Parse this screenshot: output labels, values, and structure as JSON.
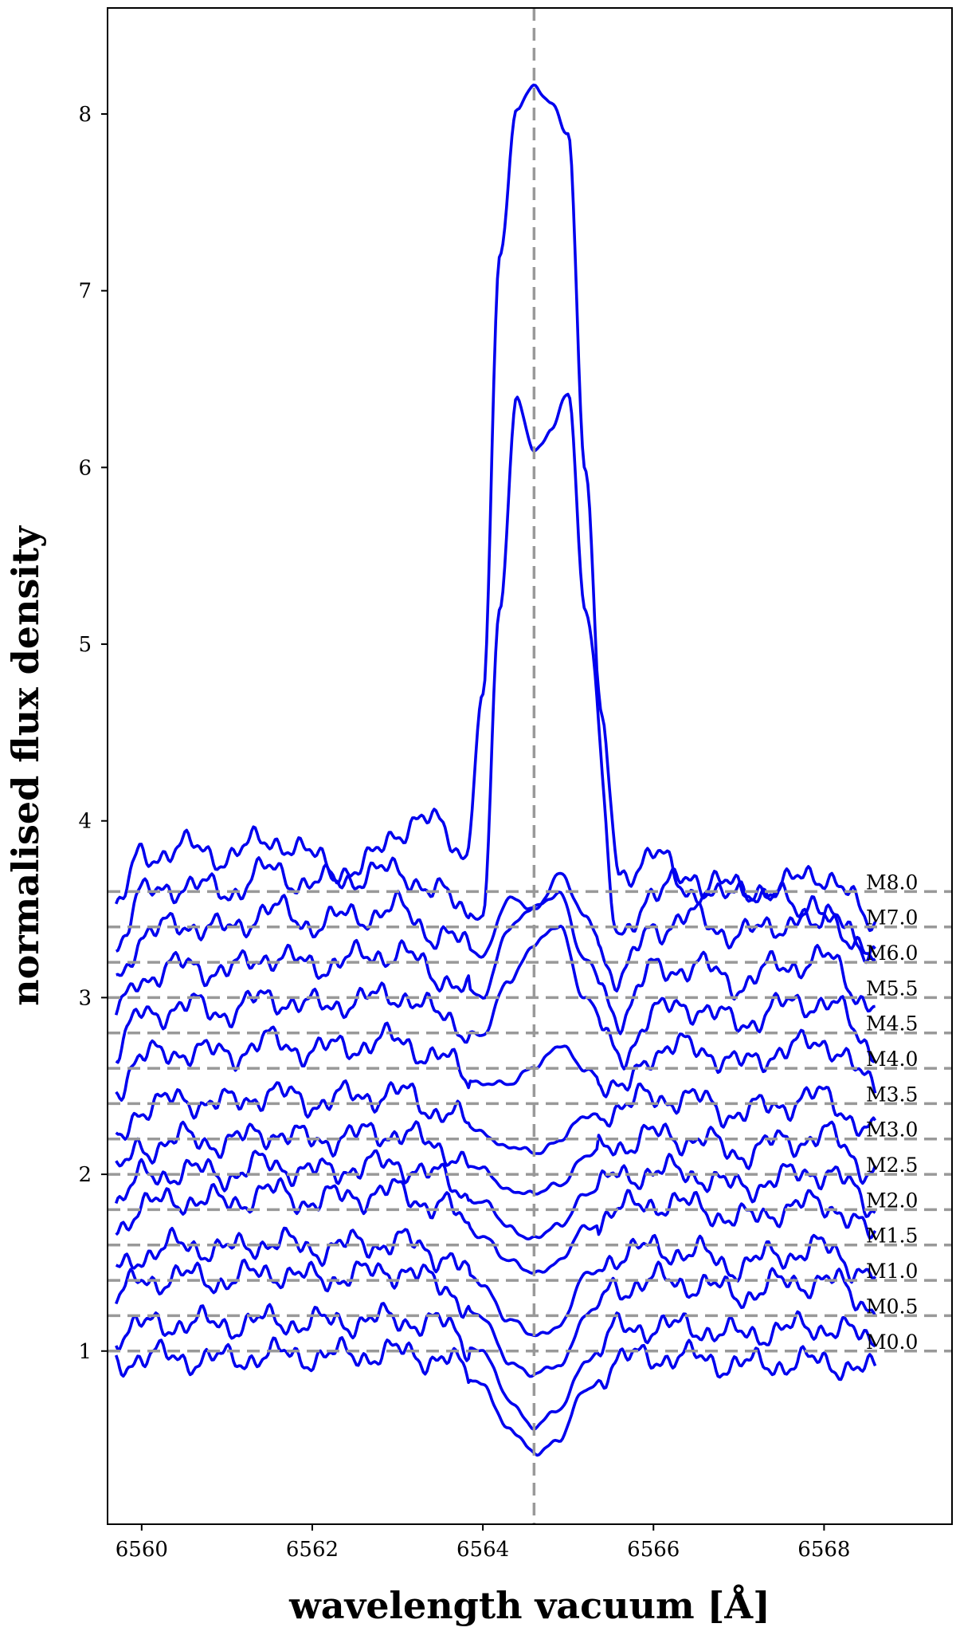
{
  "chart_data": {
    "type": "line",
    "xlabel": "wavelength vacuum [Å]",
    "ylabel": "normalised flux density",
    "xlim": [
      6559.6,
      6569.5
    ],
    "ylim": [
      0.02,
      8.6
    ],
    "xticks": [
      6560,
      6562,
      6564,
      6566,
      6568
    ],
    "yticks": [
      1,
      2,
      3,
      4,
      5,
      6,
      7,
      8
    ],
    "grid": false,
    "reference_line": {
      "x": 6564.6,
      "style": "dashed",
      "color": "#999999"
    },
    "colors": {
      "series": "#0000ee",
      "reference": "#999999"
    },
    "series": [
      {
        "name": "M0.0",
        "offset": 1.0,
        "x": [
          6559.7,
          6560.0,
          6560.5,
          6561.0,
          6561.5,
          6562.0,
          6562.5,
          6563.0,
          6563.5,
          6564.0,
          6564.3,
          6564.6,
          6564.9,
          6565.2,
          6565.6,
          6566.0,
          6566.5,
          6567.0,
          6567.5,
          6568.0,
          6568.6
        ],
        "y": [
          0.93,
          0.97,
          0.96,
          0.95,
          0.98,
          0.97,
          0.98,
          0.99,
          0.96,
          0.82,
          0.55,
          0.43,
          0.5,
          0.78,
          0.95,
          0.97,
          0.96,
          0.92,
          0.93,
          0.94,
          0.88
        ]
      },
      {
        "name": "M0.5",
        "offset": 1.2,
        "x": [
          6559.7,
          6560.0,
          6560.5,
          6561.0,
          6561.5,
          6562.0,
          6562.5,
          6563.0,
          6563.5,
          6564.0,
          6564.3,
          6564.6,
          6564.9,
          6565.2,
          6565.6,
          6566.0,
          6566.5,
          6567.0,
          6567.5,
          6568.0,
          6568.6
        ],
        "y": [
          1.1,
          1.14,
          1.16,
          1.15,
          1.17,
          1.16,
          1.17,
          1.18,
          1.15,
          1.0,
          0.72,
          0.58,
          0.66,
          0.95,
          1.12,
          1.14,
          1.13,
          1.09,
          1.12,
          1.14,
          1.06
        ]
      },
      {
        "name": "M1.0",
        "offset": 1.4,
        "x": [
          6559.7,
          6560.0,
          6560.5,
          6561.0,
          6561.5,
          6562.0,
          6562.5,
          6563.0,
          6563.5,
          6564.0,
          6564.3,
          6564.6,
          6564.9,
          6565.2,
          6565.6,
          6566.0,
          6566.5,
          6567.0,
          6567.5,
          6568.0,
          6568.6
        ],
        "y": [
          1.3,
          1.4,
          1.42,
          1.4,
          1.45,
          1.41,
          1.43,
          1.46,
          1.38,
          1.18,
          0.95,
          0.86,
          0.92,
          1.2,
          1.36,
          1.4,
          1.38,
          1.32,
          1.38,
          1.4,
          1.26
        ]
      },
      {
        "name": "M1.5",
        "offset": 1.6,
        "x": [
          6559.7,
          6560.0,
          6560.5,
          6561.0,
          6561.5,
          6562.0,
          6562.5,
          6563.0,
          6563.5,
          6564.0,
          6564.3,
          6564.6,
          6564.9,
          6565.2,
          6565.6,
          6566.0,
          6566.5,
          6567.0,
          6567.5,
          6568.0,
          6568.6
        ],
        "y": [
          1.45,
          1.55,
          1.6,
          1.57,
          1.62,
          1.58,
          1.6,
          1.62,
          1.55,
          1.38,
          1.18,
          1.08,
          1.15,
          1.42,
          1.55,
          1.58,
          1.55,
          1.48,
          1.55,
          1.58,
          1.42
        ]
      },
      {
        "name": "M2.0",
        "offset": 1.8,
        "x": [
          6559.7,
          6560.0,
          6560.5,
          6561.0,
          6561.5,
          6562.0,
          6562.5,
          6563.0,
          6563.5,
          6564.0,
          6564.3,
          6564.6,
          6564.9,
          6565.2,
          6565.6,
          6566.0,
          6566.5,
          6567.0,
          6567.5,
          6568.0,
          6568.6
        ],
        "y": [
          1.7,
          1.82,
          1.86,
          1.84,
          1.9,
          1.85,
          1.88,
          1.9,
          1.82,
          1.66,
          1.5,
          1.45,
          1.5,
          1.7,
          1.8,
          1.84,
          1.82,
          1.74,
          1.8,
          1.84,
          1.65
        ]
      },
      {
        "name": "M2.5",
        "offset": 2.0,
        "x": [
          6559.7,
          6560.0,
          6560.5,
          6561.0,
          6561.5,
          6562.0,
          6562.5,
          6563.0,
          6563.5,
          6564.0,
          6564.3,
          6564.6,
          6564.9,
          6565.2,
          6565.6,
          6566.0,
          6566.5,
          6567.0,
          6567.5,
          6568.0,
          6568.6
        ],
        "y": [
          1.85,
          1.98,
          2.02,
          2.0,
          2.06,
          2.01,
          2.04,
          2.06,
          1.98,
          1.84,
          1.7,
          1.64,
          1.7,
          1.9,
          1.98,
          2.02,
          2.0,
          1.92,
          1.98,
          2.02,
          1.82
        ]
      },
      {
        "name": "M3.0",
        "offset": 2.2,
        "x": [
          6559.7,
          6560.0,
          6560.5,
          6561.0,
          6561.5,
          6562.0,
          6562.5,
          6563.0,
          6563.5,
          6564.0,
          6564.3,
          6564.6,
          6564.9,
          6565.2,
          6565.6,
          6566.0,
          6566.5,
          6567.0,
          6567.5,
          6568.0,
          6568.6
        ],
        "y": [
          2.0,
          2.15,
          2.2,
          2.18,
          2.24,
          2.19,
          2.22,
          2.24,
          2.15,
          2.02,
          1.92,
          1.88,
          1.95,
          2.1,
          2.17,
          2.22,
          2.2,
          2.12,
          2.18,
          2.22,
          2.02
        ]
      },
      {
        "name": "M3.5",
        "offset": 2.4,
        "x": [
          6559.7,
          6560.0,
          6560.5,
          6561.0,
          6561.5,
          6562.0,
          6562.5,
          6563.0,
          6563.5,
          6564.0,
          6564.3,
          6564.6,
          6564.9,
          6565.2,
          6565.6,
          6566.0,
          6566.5,
          6567.0,
          6567.5,
          6568.0,
          6568.6
        ],
        "y": [
          2.2,
          2.38,
          2.42,
          2.4,
          2.46,
          2.41,
          2.44,
          2.46,
          2.36,
          2.24,
          2.15,
          2.12,
          2.2,
          2.32,
          2.38,
          2.44,
          2.42,
          2.34,
          2.4,
          2.44,
          2.22
        ]
      },
      {
        "name": "M4.0",
        "offset": 2.6,
        "x": [
          6559.7,
          6560.0,
          6560.5,
          6561.0,
          6561.5,
          6562.0,
          6562.5,
          6563.0,
          6563.5,
          6564.0,
          6564.3,
          6564.6,
          6564.9,
          6565.2,
          6565.6,
          6566.0,
          6566.5,
          6567.0,
          6567.5,
          6568.0,
          6568.6
        ],
        "y": [
          2.5,
          2.66,
          2.7,
          2.68,
          2.75,
          2.7,
          2.73,
          2.76,
          2.65,
          2.52,
          2.5,
          2.62,
          2.72,
          2.6,
          2.45,
          2.7,
          2.72,
          2.62,
          2.7,
          2.75,
          2.5
        ]
      },
      {
        "name": "M4.5",
        "offset": 2.8,
        "x": [
          6559.7,
          6560.0,
          6560.5,
          6561.0,
          6561.5,
          6562.0,
          6562.5,
          6563.0,
          6563.5,
          6564.0,
          6564.3,
          6564.6,
          6564.9,
          6565.2,
          6565.6,
          6566.0,
          6566.5,
          6567.0,
          6567.5,
          6568.0,
          6568.6
        ],
        "y": [
          2.7,
          2.9,
          2.95,
          2.92,
          3.0,
          2.95,
          2.98,
          3.02,
          2.9,
          2.78,
          3.1,
          3.3,
          3.4,
          3.0,
          2.65,
          2.92,
          2.95,
          2.85,
          2.95,
          2.98,
          2.72
        ]
      },
      {
        "name": "M5.5",
        "offset": 3.0,
        "x": [
          6559.7,
          6560.0,
          6560.5,
          6561.0,
          6561.5,
          6562.0,
          6562.5,
          6563.0,
          6563.5,
          6564.0,
          6564.3,
          6564.6,
          6564.9,
          6565.2,
          6565.6,
          6566.0,
          6566.5,
          6567.0,
          6567.5,
          6568.0,
          6568.6
        ],
        "y": [
          2.9,
          3.12,
          3.18,
          3.15,
          3.24,
          3.18,
          3.22,
          3.26,
          3.12,
          3.0,
          3.4,
          3.5,
          3.6,
          3.2,
          2.9,
          3.15,
          3.18,
          3.08,
          3.18,
          3.22,
          2.95
        ]
      },
      {
        "name": "M6.0",
        "offset": 3.2,
        "x": [
          6559.7,
          6560.0,
          6560.5,
          6561.0,
          6561.5,
          6562.0,
          6562.5,
          6563.0,
          6563.5,
          6564.0,
          6564.3,
          6564.6,
          6564.9,
          6565.2,
          6565.6,
          6566.0,
          6566.5,
          6567.0,
          6567.5,
          6568.0,
          6568.6
        ],
        "y": [
          3.1,
          3.35,
          3.42,
          3.38,
          3.5,
          3.42,
          3.46,
          3.5,
          3.35,
          3.25,
          3.55,
          3.5,
          3.7,
          3.45,
          3.1,
          3.4,
          3.45,
          3.35,
          3.42,
          3.48,
          3.2
        ]
      },
      {
        "name": "M7.0",
        "offset": 3.4,
        "x": [
          6559.7,
          6560.0,
          6560.5,
          6561.0,
          6561.5,
          6562.0,
          6562.5,
          6563.0,
          6563.5,
          6564.0,
          6564.2,
          6564.4,
          6564.6,
          6564.8,
          6565.0,
          6565.2,
          6565.6,
          6566.0,
          6566.5,
          6567.0,
          6567.5,
          6568.0,
          6568.6
        ],
        "y": [
          3.3,
          3.58,
          3.64,
          3.6,
          3.72,
          3.64,
          3.68,
          3.72,
          3.58,
          3.46,
          5.2,
          6.4,
          6.1,
          6.2,
          6.42,
          5.2,
          3.3,
          3.62,
          3.66,
          3.56,
          3.64,
          3.7,
          3.42
        ]
      },
      {
        "name": "M8.0",
        "offset": 3.6,
        "x": [
          6559.7,
          6560.0,
          6560.5,
          6561.0,
          6561.5,
          6562.0,
          6562.5,
          6563.0,
          6563.5,
          6563.8,
          6564.0,
          6564.2,
          6564.4,
          6564.6,
          6564.8,
          6565.0,
          6565.2,
          6565.4,
          6565.6,
          6566.0,
          6566.5,
          6567.0,
          6567.5,
          6568.0,
          6568.6
        ],
        "y": [
          3.5,
          3.8,
          3.85,
          3.8,
          3.9,
          3.8,
          3.7,
          3.95,
          4.0,
          3.8,
          4.7,
          7.2,
          8.05,
          8.15,
          8.05,
          7.9,
          6.0,
          4.5,
          3.7,
          3.8,
          3.6,
          3.65,
          3.55,
          3.45,
          3.28
        ]
      }
    ]
  }
}
